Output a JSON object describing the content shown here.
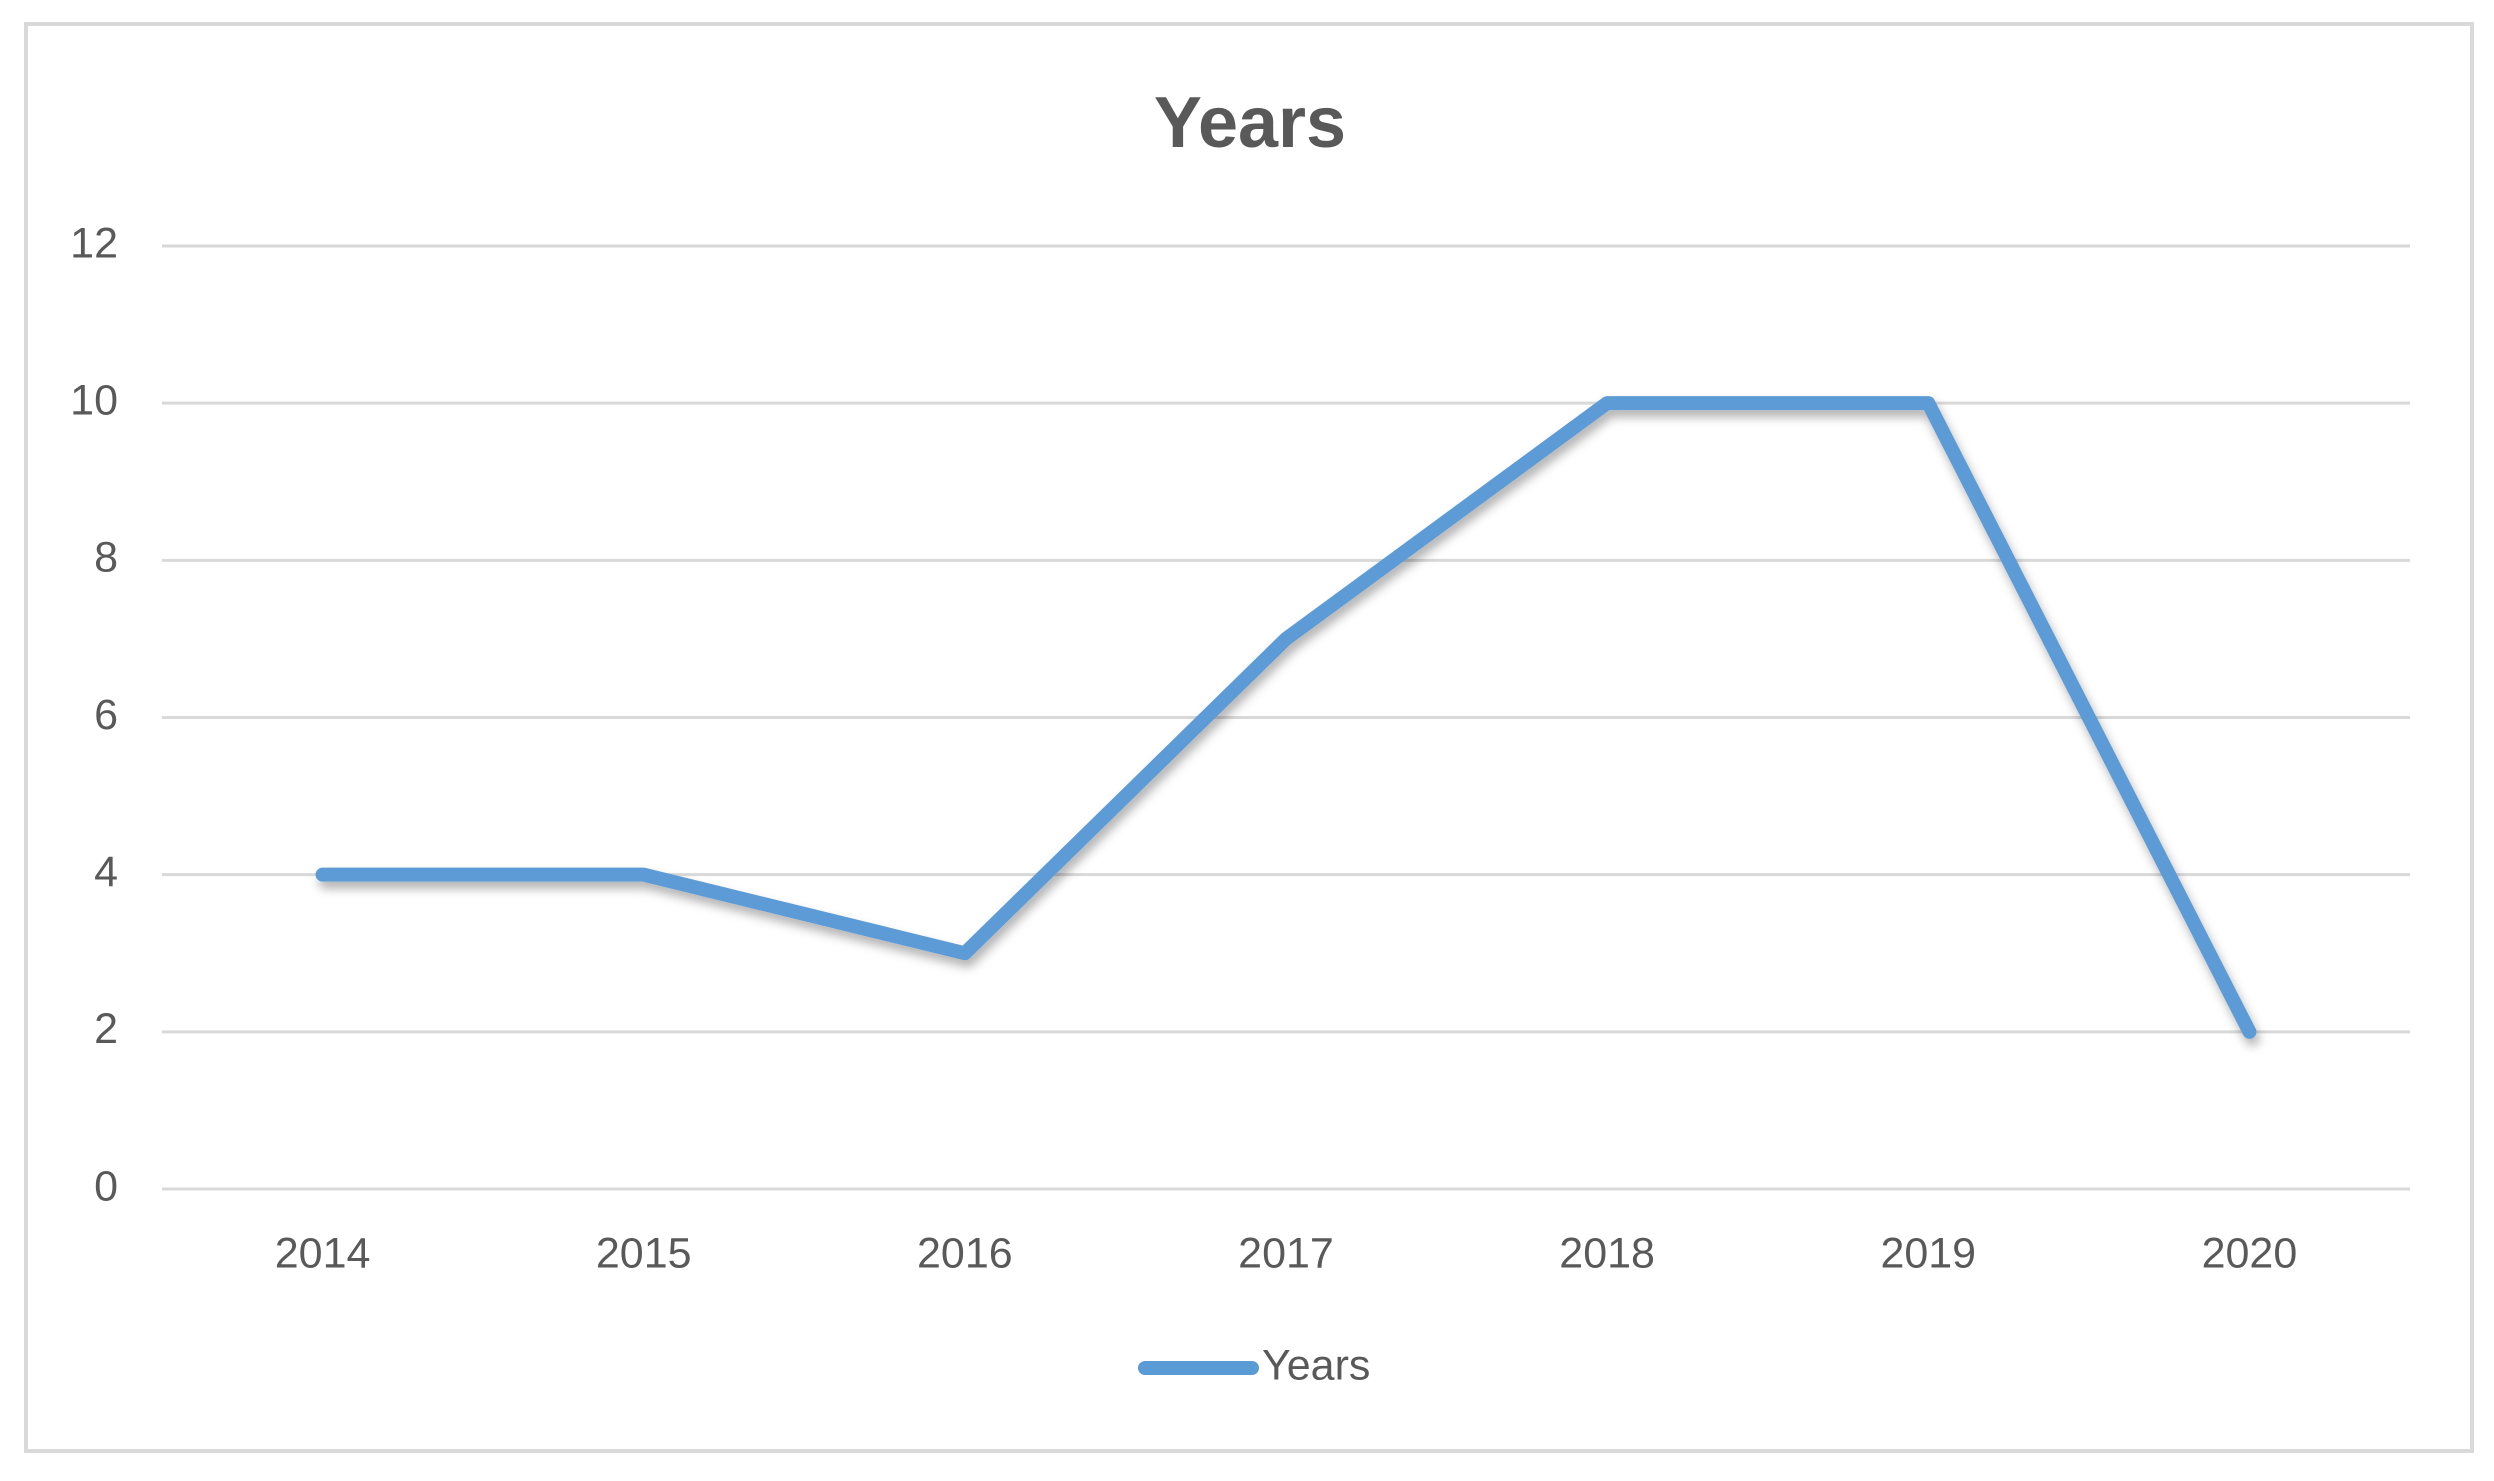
{
  "chart_data": {
    "type": "line",
    "title": "Years",
    "categories": [
      "2014",
      "2015",
      "2016",
      "2017",
      "2018",
      "2019",
      "2020"
    ],
    "series": [
      {
        "name": "Years",
        "color": "#5b9bd5",
        "values": [
          4,
          4,
          3,
          7,
          10,
          10,
          2
        ]
      }
    ],
    "ylim": [
      0,
      12
    ],
    "yticks": [
      0,
      2,
      4,
      6,
      8,
      10,
      12
    ],
    "grid": true,
    "legend": "bottom"
  }
}
